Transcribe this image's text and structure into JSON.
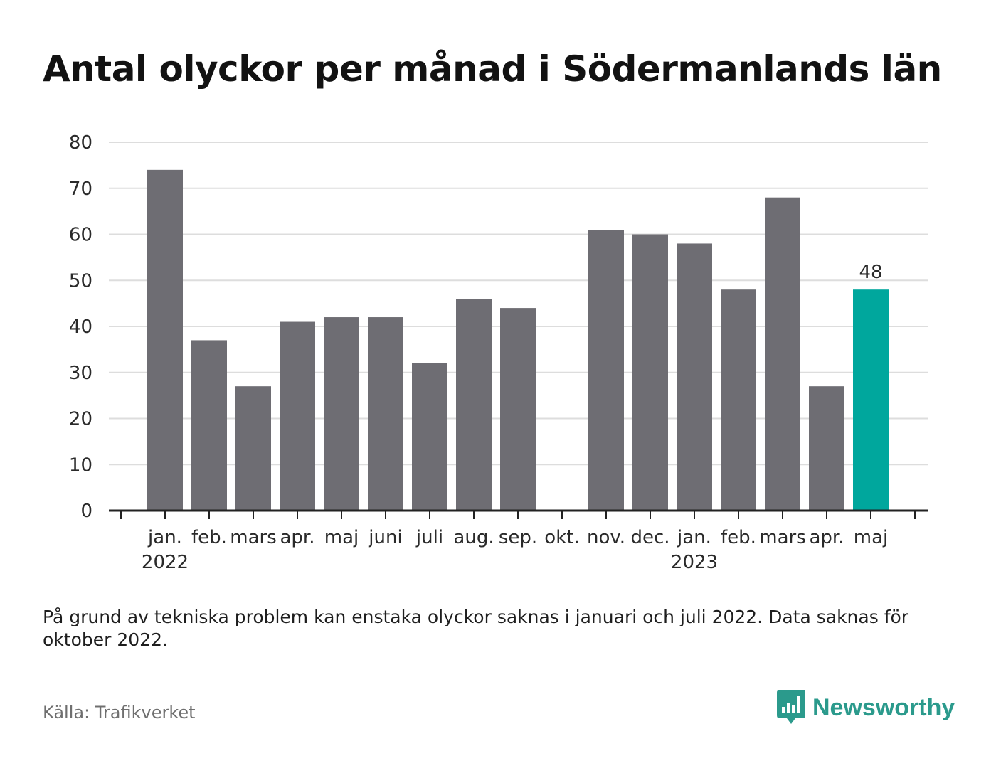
{
  "title": "Antal olyckor per månad i Södermanlands län",
  "note": "På grund av tekniska problem kan enstaka olyckor saknas i januari och juli 2022. Data saknas för oktober 2022.",
  "source": "Källa: Trafikverket",
  "brand": {
    "name": "Newsworthy",
    "icon": "bar-chart-logo-icon",
    "color": "#2b9a8c"
  },
  "colors": {
    "bar": "#6e6d73",
    "highlight": "#00a79d",
    "grid": "#dddddd",
    "axis": "#222222"
  },
  "chart_data": {
    "type": "bar",
    "categories": [
      "jan.",
      "feb.",
      "mars",
      "apr.",
      "maj",
      "juni",
      "juli",
      "aug.",
      "sep.",
      "okt.",
      "nov.",
      "dec.",
      "jan.",
      "feb.",
      "mars",
      "apr.",
      "maj"
    ],
    "years": [
      {
        "label": "2022",
        "category_index": 0
      },
      {
        "label": "2023",
        "category_index": 12
      }
    ],
    "values": [
      74,
      37,
      27,
      41,
      42,
      42,
      32,
      46,
      44,
      null,
      61,
      60,
      58,
      48,
      68,
      27,
      48
    ],
    "highlight_index": 16,
    "data_labels": [
      {
        "index": 16,
        "text": "48"
      }
    ],
    "yticks": [
      "0",
      "10",
      "20",
      "30",
      "40",
      "50",
      "60",
      "70",
      "80"
    ],
    "ylim": [
      0,
      80
    ],
    "grid": true,
    "xlabel": "",
    "ylabel": ""
  }
}
